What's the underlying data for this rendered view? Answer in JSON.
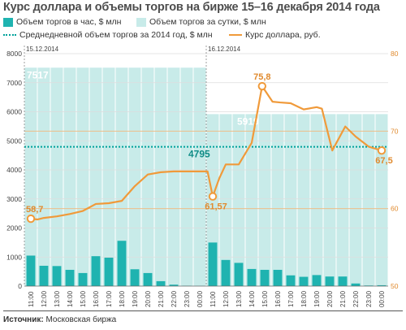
{
  "title": "Курс доллара и объемы торгов на бирже 15–16 декабря 2014 года",
  "legend": {
    "hourly": "Объем торгов в час, $ млн",
    "daily": "Объем торгов за сутки, $ млн",
    "average": "Среднедневной объем торгов за 2014 год, $ млн",
    "rate": "Курс доллара, руб."
  },
  "colors": {
    "bar": "#1fb3b0",
    "daily_fill": "#c8ebe9",
    "average_line": "#00a19a",
    "rate_line": "#f09a3a",
    "right_axis": "#e08a2e"
  },
  "source_label": "Источник:",
  "source_value": "Московская биржа",
  "chart_data": {
    "type": "bar",
    "categories": [
      "11:00",
      "12:00",
      "13:00",
      "14:00",
      "15:00",
      "16:00",
      "17:00",
      "18:00",
      "19:00",
      "20:00",
      "21:00",
      "22:00",
      "23:00",
      "00:00",
      "11:00",
      "12:00",
      "13:00",
      "14:00",
      "15:00",
      "16:00",
      "17:00",
      "18:00",
      "19:00",
      "20:00",
      "21:00",
      "22:00",
      "23:00",
      "00:00"
    ],
    "date_labels": [
      "15.12.2014",
      "16.12.2014"
    ],
    "y_left": {
      "ticks": [
        0,
        1000,
        2000,
        3000,
        4000,
        5000,
        6000,
        7000,
        8000
      ],
      "min": 0,
      "max": 8000
    },
    "y_right": {
      "ticks": [
        50,
        60,
        70,
        80
      ],
      "min": 50,
      "max": 80
    },
    "daily_totals": [
      {
        "day": "15.12.2014",
        "value": 7517,
        "label": "7517"
      },
      {
        "day": "16.12.2014",
        "value": 5919,
        "label": "5919"
      }
    ],
    "average": {
      "value": 4795,
      "label": "4795"
    },
    "series": [
      {
        "name": "Объем торгов в час, $ млн",
        "type": "bar",
        "axis": "left",
        "values": [
          1050,
          700,
          690,
          560,
          450,
          1030,
          980,
          1560,
          580,
          450,
          170,
          50,
          10,
          5,
          1500,
          900,
          800,
          590,
          560,
          560,
          370,
          320,
          380,
          330,
          330,
          90,
          20,
          30
        ]
      },
      {
        "name": "Курс доллара, руб.",
        "type": "line",
        "axis": "right",
        "points": [
          [
            0,
            58.7
          ],
          [
            0.5,
            58.6
          ],
          [
            1,
            58.8
          ],
          [
            2,
            59.0
          ],
          [
            3,
            59.3
          ],
          [
            4,
            59.7
          ],
          [
            5,
            60.6
          ],
          [
            6,
            60.7
          ],
          [
            7,
            61.0
          ],
          [
            8,
            62.9
          ],
          [
            9,
            64.4
          ],
          [
            10,
            64.7
          ],
          [
            11,
            64.8
          ],
          [
            12,
            64.8
          ],
          [
            13,
            64.8
          ],
          [
            13.6,
            64.8
          ],
          [
            14,
            61.57
          ],
          [
            14.5,
            63.9
          ],
          [
            15,
            65.7
          ],
          [
            16,
            65.7
          ],
          [
            17,
            68.5
          ],
          [
            17.8,
            75.8
          ],
          [
            18.6,
            73.8
          ],
          [
            19.2,
            73.7
          ],
          [
            20,
            73.6
          ],
          [
            21,
            72.8
          ],
          [
            22,
            73.1
          ],
          [
            22.4,
            72.9
          ],
          [
            23.2,
            67.5
          ],
          [
            24.2,
            70.6
          ],
          [
            25,
            69.3
          ],
          [
            26,
            68.0
          ],
          [
            27,
            67.5
          ]
        ],
        "labeled": [
          {
            "x": 0,
            "y": 58.7,
            "label": "58,7"
          },
          {
            "x": 14,
            "y": 61.57,
            "label": "61,57"
          },
          {
            "x": 17.8,
            "y": 75.8,
            "label": "75,8"
          },
          {
            "x": 27,
            "y": 67.5,
            "label": "67,5"
          }
        ]
      }
    ]
  }
}
